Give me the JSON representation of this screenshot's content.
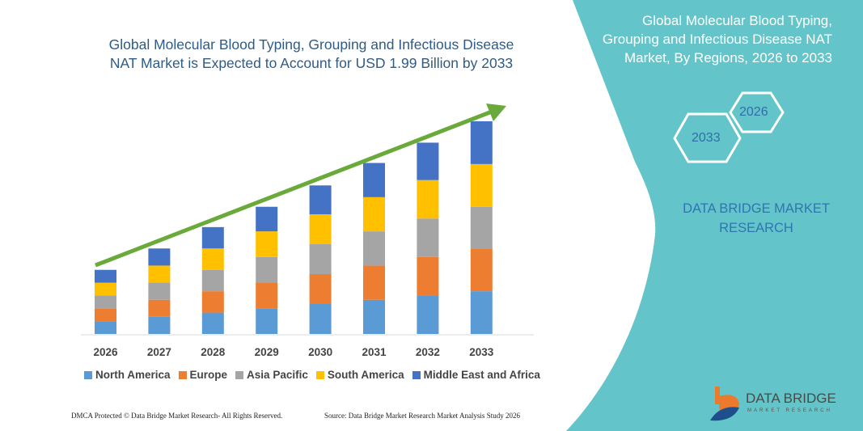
{
  "header": {
    "title_line1": "Global Molecular Blood Typing, Grouping and Infectious Disease",
    "title_line2": "NAT Market is Expected to Account for USD 1.99 Billion by 2033"
  },
  "side_panel": {
    "title": "Global Molecular Blood Typing, Grouping and Infectious Disease NAT Market, By Regions, 2026 to 2033",
    "hex_start": "2026",
    "hex_end": "2033",
    "brand_line1": "DATA BRIDGE MARKET",
    "brand_line2": "RESEARCH",
    "logo_text": "DATA BRIDGE",
    "logo_sub": "MARKET RESEARCH",
    "color": "#63c5c9"
  },
  "footer": {
    "left": "DMCA Protected © Data Bridge Market Research- All Rights Reserved.",
    "right": "Source: Data Bridge Market Research Market Analysis Study 2026"
  },
  "chart_data": {
    "type": "bar",
    "stacked": true,
    "title": "",
    "xlabel": "",
    "ylabel": "",
    "y_axis_shown": false,
    "grid": false,
    "legend_position": "bottom",
    "trend_arrow": true,
    "categories": [
      "2026",
      "2027",
      "2028",
      "2029",
      "2030",
      "2031",
      "2032",
      "2033"
    ],
    "series": [
      {
        "name": "North America",
        "color": "#5b9bd5",
        "values": [
          0.12,
          0.16,
          0.2,
          0.24,
          0.28,
          0.32,
          0.36,
          0.4
        ]
      },
      {
        "name": "Europe",
        "color": "#ed7d31",
        "values": [
          0.12,
          0.16,
          0.2,
          0.24,
          0.28,
          0.32,
          0.36,
          0.4
        ]
      },
      {
        "name": "Asia Pacific",
        "color": "#a5a5a5",
        "values": [
          0.12,
          0.16,
          0.2,
          0.24,
          0.28,
          0.32,
          0.36,
          0.39
        ]
      },
      {
        "name": "South America",
        "color": "#ffc000",
        "values": [
          0.12,
          0.16,
          0.2,
          0.24,
          0.28,
          0.32,
          0.36,
          0.4
        ]
      },
      {
        "name": "Middle East and Africa",
        "color": "#4472c4",
        "values": [
          0.12,
          0.16,
          0.2,
          0.23,
          0.27,
          0.32,
          0.35,
          0.4
        ]
      }
    ],
    "arrow_color": "#6aaa3a"
  }
}
